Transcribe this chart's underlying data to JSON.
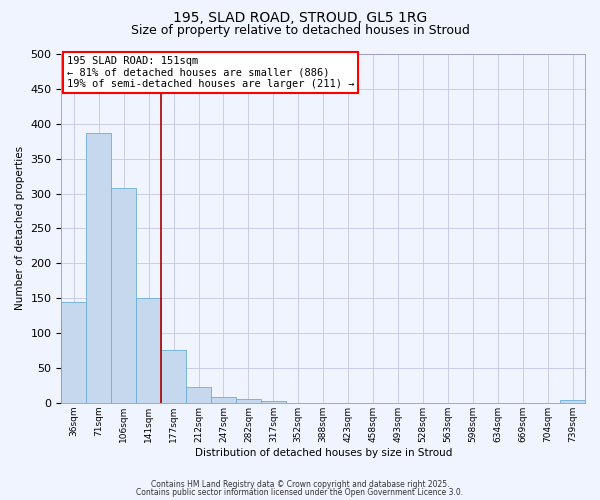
{
  "title1": "195, SLAD ROAD, STROUD, GL5 1RG",
  "title2": "Size of property relative to detached houses in Stroud",
  "xlabel": "Distribution of detached houses by size in Stroud",
  "ylabel": "Number of detached properties",
  "bar_values": [
    145,
    387,
    308,
    150,
    75,
    23,
    9,
    5,
    3,
    0,
    0,
    0,
    0,
    0,
    0,
    0,
    0,
    0,
    0,
    0,
    4
  ],
  "bin_labels": [
    "36sqm",
    "71sqm",
    "106sqm",
    "141sqm",
    "177sqm",
    "212sqm",
    "247sqm",
    "282sqm",
    "317sqm",
    "352sqm",
    "388sqm",
    "423sqm",
    "458sqm",
    "493sqm",
    "528sqm",
    "563sqm",
    "598sqm",
    "634sqm",
    "669sqm",
    "704sqm",
    "739sqm"
  ],
  "bar_color": "#c5d8ed",
  "bar_edge_color": "#6aafd6",
  "red_line_x": 3.5,
  "annotation_text": "195 SLAD ROAD: 151sqm\n← 81% of detached houses are smaller (886)\n19% of semi-detached houses are larger (211) →",
  "annotation_box_color": "white",
  "annotation_box_edge_color": "red",
  "red_line_color": "#aa0000",
  "ylim": [
    0,
    500
  ],
  "yticks": [
    0,
    50,
    100,
    150,
    200,
    250,
    300,
    350,
    400,
    450,
    500
  ],
  "footnote1": "Contains HM Land Registry data © Crown copyright and database right 2025.",
  "footnote2": "Contains public sector information licensed under the Open Government Licence 3.0.",
  "bg_color": "#f0f4ff",
  "grid_color": "#c8cce8",
  "title1_fontsize": 10,
  "title2_fontsize": 9,
  "annot_fontsize": 7.5,
  "xlabel_fontsize": 7.5,
  "ylabel_fontsize": 7.5,
  "ytick_fontsize": 8,
  "xtick_fontsize": 6.5,
  "footnote_fontsize": 5.5
}
